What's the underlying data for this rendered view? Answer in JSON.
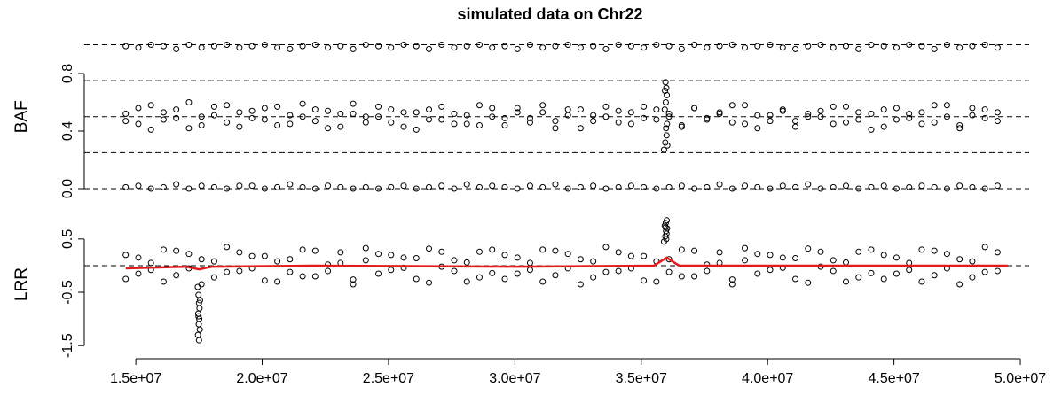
{
  "chart_data": [
    {
      "type": "scatter",
      "title": "simulated data on Chr22",
      "ylabel": "BAF",
      "xlim": [
        12960000,
        50350000
      ],
      "ylim": [
        -0.04,
        1.04
      ],
      "yticks": [
        {
          "value": 0,
          "label": "0.0"
        },
        0.4,
        0.8
      ],
      "hlines": [
        0,
        0.25,
        0.5,
        0.75,
        1
      ],
      "x": [
        14600000,
        15100000,
        15600000,
        16100000,
        16600000,
        17100000,
        17600000,
        18100000,
        18600000,
        19100000,
        19600000,
        20100000,
        20600000,
        21100000,
        21600000,
        22100000,
        22600000,
        23100000,
        23600000,
        24100000,
        24600000,
        25100000,
        25600000,
        26100000,
        26600000,
        27100000,
        27600000,
        28100000,
        28600000,
        29100000,
        29600000,
        30100000,
        30600000,
        31100000,
        31600000,
        32100000,
        32600000,
        33100000,
        33600000,
        34100000,
        34600000,
        35100000,
        35600000,
        36100000,
        36600000,
        37100000,
        37600000,
        38100000,
        38600000,
        39100000,
        39600000,
        40100000,
        40600000,
        41100000,
        41600000,
        42100000,
        42600000,
        43100000,
        43600000,
        44100000,
        44600000,
        45100000,
        45600000,
        46100000,
        46600000,
        47100000,
        47600000,
        48100000,
        48600000,
        49100000
      ],
      "series": [
        {
          "color": "#000000",
          "values": [
            0.01,
            0.02,
            0.0,
            0.01,
            0.03,
            0.0,
            0.02,
            0.01,
            0.0,
            0.02,
            0.02,
            0.0,
            0.01,
            0.03,
            0.01,
            0.0,
            0.02,
            0.01,
            0.0,
            0.01,
            0.0,
            0.01,
            0.02,
            0.0,
            0.01,
            0.02,
            0.0,
            0.03,
            0.01,
            0.02,
            0.01,
            0.0,
            0.02,
            0.01,
            0.03,
            0.0,
            0.01,
            0.02,
            0.0,
            0.01,
            0.02,
            0.01,
            0.0,
            0.01,
            0.02,
            0.0,
            0.01,
            0.03,
            0.0,
            0.02,
            0.01,
            0.0,
            0.02,
            0.01,
            0.03,
            0.0,
            0.01,
            0.02,
            0.0,
            0.01,
            0.02,
            0.0,
            0.01,
            0.02,
            0.01,
            0.0,
            0.02,
            0.01,
            0.0,
            0.02
          ]
        },
        {
          "color": "#000000",
          "values": [
            0.99,
            0.98,
            1.0,
            0.99,
            0.97,
            1.0,
            0.98,
            0.99,
            1.0,
            0.98,
            0.99,
            1.0,
            0.98,
            0.97,
            0.99,
            1.0,
            0.98,
            0.99,
            0.97,
            1.0,
            0.99,
            0.98,
            1.0,
            0.99,
            0.97,
            1.0,
            0.98,
            0.99,
            1.0,
            0.98,
            0.99,
            0.97,
            1.0,
            0.98,
            0.99,
            1.0,
            0.98,
            0.99,
            0.97,
            1.0,
            0.99,
            0.98,
            1.0,
            0.99,
            0.97,
            1.0,
            0.98,
            0.99,
            1.0,
            0.98,
            0.99,
            1.0,
            0.98,
            0.97,
            0.99,
            1.0,
            0.98,
            0.99,
            0.97,
            1.0,
            0.99,
            0.98,
            1.0,
            0.99,
            0.97,
            1.0,
            0.98,
            0.99,
            1.0,
            0.98
          ]
        },
        {
          "color": "#000000",
          "values": [
            0.52,
            0.45,
            0.58,
            0.48,
            0.55,
            0.42,
            0.5,
            0.57,
            0.46,
            0.53,
            0.49,
            0.56,
            0.44,
            0.51,
            0.59,
            0.47,
            0.54,
            0.43,
            0.52,
            0.5,
            0.57,
            0.46,
            0.53,
            0.41,
            0.55,
            0.48,
            0.52,
            0.45,
            0.58,
            0.5,
            0.44,
            0.56,
            0.49,
            0.53,
            0.47,
            0.55,
            0.42,
            0.51,
            0.57,
            0.46,
            0.53,
            0.49,
            0.55,
            0.5,
            0.44,
            0.56,
            0.48,
            0.52,
            0.58,
            0.45,
            0.51,
            0.47,
            0.54,
            0.43,
            0.52,
            0.5,
            0.57,
            0.46,
            0.53,
            0.41,
            0.55,
            0.48,
            0.52,
            0.45,
            0.58,
            0.5,
            0.44,
            0.56,
            0.49,
            0.53
          ]
        },
        {
          "color": "#000000",
          "values": [
            0.47,
            0.56,
            0.41,
            0.53,
            0.49,
            0.6,
            0.44,
            0.51,
            0.58,
            0.43,
            0.54,
            0.48,
            0.57,
            0.45,
            0.5,
            0.55,
            0.42,
            0.52,
            0.59,
            0.46,
            0.5,
            0.55,
            0.43,
            0.53,
            0.48,
            0.57,
            0.45,
            0.51,
            0.44,
            0.56,
            0.49,
            0.53,
            0.46,
            0.58,
            0.42,
            0.51,
            0.55,
            0.47,
            0.5,
            0.54,
            0.45,
            0.57,
            0.48,
            0.52,
            0.43,
            0.56,
            0.49,
            0.53,
            0.46,
            0.58,
            0.42,
            0.51,
            0.55,
            0.47,
            0.5,
            0.54,
            0.45,
            0.57,
            0.48,
            0.52,
            0.43,
            0.56,
            0.49,
            0.53,
            0.46,
            0.58,
            0.42,
            0.51,
            0.55,
            0.47
          ]
        },
        {
          "color": "#000000",
          "x": [
            35900000,
            35950000,
            36000000,
            35980000,
            36020000,
            35930000,
            35970000,
            36010000,
            35990000,
            35960000,
            36030000,
            35940000
          ],
          "values": [
            0.27,
            0.32,
            0.37,
            0.42,
            0.45,
            0.55,
            0.6,
            0.65,
            0.7,
            0.74,
            0.3,
            0.68
          ]
        }
      ]
    },
    {
      "type": "scatter",
      "ylabel": "LRR",
      "xlim": [
        12960000,
        50350000
      ],
      "ylim": [
        -1.58,
        0.88
      ],
      "yticks": [
        -1.5,
        -0.5,
        0.5
      ],
      "hlines": [
        0
      ],
      "xticks": [
        {
          "value": 15000000,
          "label": "1.5e+07"
        },
        {
          "value": 20000000,
          "label": "2.0e+07"
        },
        {
          "value": 25000000,
          "label": "2.5e+07"
        },
        {
          "value": 30000000,
          "label": "3.0e+07"
        },
        {
          "value": 35000000,
          "label": "3.5e+07"
        },
        {
          "value": 40000000,
          "label": "4.0e+07"
        },
        {
          "value": 45000000,
          "label": "4.5e+07"
        },
        {
          "value": 50000000,
          "label": "5.0e+07"
        }
      ],
      "x": [
        14600000,
        15100000,
        15600000,
        16100000,
        16600000,
        17100000,
        17600000,
        18100000,
        18600000,
        19100000,
        19600000,
        20100000,
        20600000,
        21100000,
        21600000,
        22100000,
        22600000,
        23100000,
        23600000,
        24100000,
        24600000,
        25100000,
        25600000,
        26100000,
        26600000,
        27100000,
        27600000,
        28100000,
        28600000,
        29100000,
        29600000,
        30100000,
        30600000,
        31100000,
        31600000,
        32100000,
        32600000,
        33100000,
        33600000,
        34100000,
        34600000,
        35100000,
        35600000,
        36100000,
        36600000,
        37100000,
        37600000,
        38100000,
        38600000,
        39100000,
        39600000,
        40100000,
        40600000,
        41100000,
        41600000,
        42100000,
        42600000,
        43100000,
        43600000,
        44100000,
        44600000,
        45100000,
        45600000,
        46100000,
        46600000,
        47100000,
        47600000,
        48100000,
        48600000,
        49100000
      ],
      "series": [
        {
          "color": "#000000",
          "values": [
            0.2,
            -0.15,
            0.05,
            -0.3,
            0.28,
            -0.05,
            0.12,
            -0.22,
            0.35,
            -0.1,
            0.18,
            -0.28,
            0.08,
            -0.12,
            0.3,
            -0.2,
            0.02,
            0.25,
            -0.35,
            0.1,
            0.22,
            -0.08,
            0.15,
            -0.25,
            0.32,
            -0.02,
            0.1,
            -0.3,
            0.26,
            -0.14,
            0.2,
            -0.15,
            0.05,
            -0.3,
            0.28,
            -0.05,
            0.12,
            -0.22,
            0.35,
            -0.1,
            0.18,
            -0.28,
            0.08,
            -0.12,
            0.3,
            -0.2,
            0.02,
            0.25,
            -0.35,
            0.1,
            0.22,
            -0.08,
            0.15,
            -0.25,
            0.32,
            -0.02,
            0.1,
            -0.3,
            0.26,
            -0.14,
            0.2,
            -0.15,
            0.05,
            -0.3,
            0.28,
            -0.05,
            0.12,
            -0.22,
            0.35,
            -0.1
          ]
        },
        {
          "color": "#000000",
          "values": [
            -0.25,
            0.15,
            -0.08,
            0.3,
            -0.18,
            0.22,
            -0.35,
            0.08,
            -0.12,
            0.25,
            -0.05,
            0.18,
            -0.3,
            0.12,
            -0.2,
            0.28,
            -0.1,
            0.05,
            -0.26,
            0.33,
            -0.15,
            0.2,
            -0.04,
            0.14,
            -0.32,
            0.26,
            -0.1,
            0.06,
            -0.22,
            0.3,
            -0.25,
            0.15,
            -0.08,
            0.3,
            -0.18,
            0.22,
            -0.35,
            0.08,
            -0.12,
            0.25,
            -0.05,
            0.18,
            -0.3,
            0.12,
            -0.2,
            0.28,
            -0.1,
            0.05,
            -0.26,
            0.33,
            -0.15,
            0.2,
            -0.04,
            0.14,
            -0.32,
            0.26,
            -0.1,
            0.06,
            -0.22,
            0.3,
            -0.25,
            0.15,
            -0.08,
            0.3,
            -0.18,
            0.22,
            -0.35,
            0.08,
            -0.12,
            0.25
          ]
        },
        {
          "color": "#000000",
          "x": [
            17450000,
            17480000,
            17500000,
            17520000,
            17470000,
            17510000,
            17490000,
            17530000,
            17460000,
            17500000,
            17540000,
            17480000
          ],
          "values": [
            -0.4,
            -0.55,
            -0.7,
            -0.8,
            -0.9,
            -1.0,
            -1.1,
            -1.2,
            -1.3,
            -1.4,
            -0.65,
            -0.95
          ]
        },
        {
          "color": "#000000",
          "x": [
            35900000,
            35950000,
            36000000,
            35980000,
            36020000,
            35930000,
            35970000,
            36010000,
            35990000,
            35960000
          ],
          "values": [
            0.45,
            0.55,
            0.6,
            0.65,
            0.7,
            0.75,
            0.8,
            0.85,
            0.5,
            0.72
          ]
        },
        {
          "color": "#e41a1c",
          "line": true,
          "x": [
            14600000,
            17000000,
            17500000,
            18000000,
            22000000,
            30000000,
            35500000,
            36000000,
            36500000,
            40000000,
            49500000
          ],
          "values": [
            -0.05,
            -0.02,
            -0.07,
            -0.02,
            0.0,
            -0.02,
            0.0,
            0.15,
            0.0,
            0.0,
            0.0
          ]
        }
      ]
    }
  ]
}
